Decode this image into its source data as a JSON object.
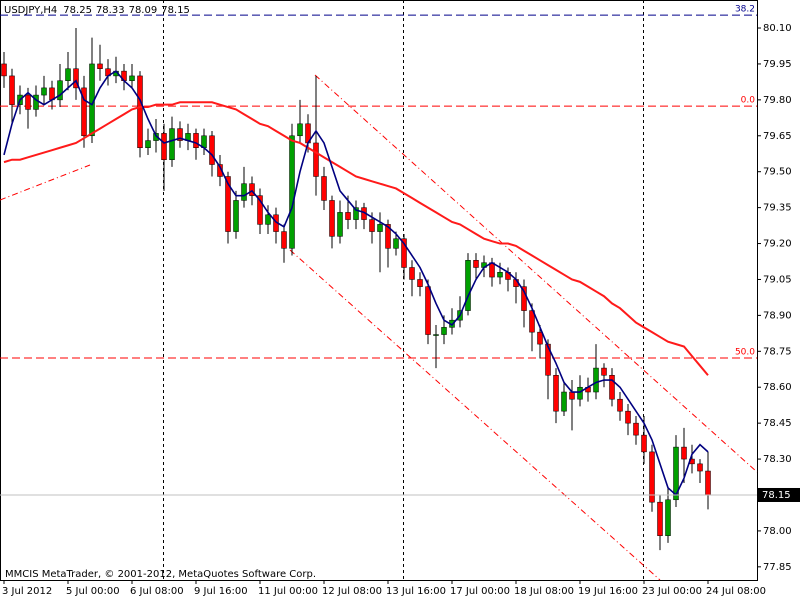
{
  "chart_data": {
    "type": "candlestick",
    "title": "USDJPY,H4",
    "footer": "MMCIS MetaTrader, © 2001-2012, MetaQuotes Software Corp.",
    "categories": [
      "3 Jul 2012",
      null,
      null,
      null,
      null,
      null,
      null,
      null,
      "5 Jul 00:00",
      null,
      null,
      null,
      null,
      null,
      null,
      null,
      "6 Jul 08:00",
      null,
      null,
      null,
      null,
      null,
      null,
      null,
      "9 Jul 16:00",
      null,
      null,
      null,
      null,
      null,
      null,
      null,
      "11 Jul 00:00",
      null,
      null,
      null,
      null,
      null,
      null,
      null,
      "12 Jul 08:00",
      null,
      null,
      null,
      null,
      null,
      null,
      null,
      "13 Jul 16:00",
      null,
      null,
      null,
      null,
      null,
      null,
      null,
      "17 Jul 00:00",
      null,
      null,
      null,
      null,
      null,
      null,
      null,
      "18 Jul 08:00",
      null,
      null,
      null,
      null,
      null,
      null,
      null,
      "19 Jul 16:00",
      null,
      null,
      null,
      null,
      null,
      null,
      null,
      "23 Jul 00:00",
      null,
      null,
      null,
      null,
      null,
      null,
      null,
      "24 Jul 08:00"
    ],
    "open": [
      79.95,
      79.9,
      79.78,
      79.82,
      79.76,
      79.82,
      79.85,
      79.8,
      79.88,
      79.93,
      79.85,
      79.65,
      79.95,
      79.93,
      79.9,
      79.92,
      79.88,
      79.9,
      79.6,
      79.63,
      79.66,
      79.55,
      79.68,
      79.63,
      79.66,
      79.6,
      79.65,
      79.53,
      79.48,
      79.25,
      79.38,
      79.45,
      79.4,
      79.28,
      79.32,
      79.25,
      79.18,
      79.65,
      79.7,
      79.62,
      79.48,
      79.38,
      79.23,
      79.33,
      79.3,
      79.35,
      79.3,
      79.25,
      79.28,
      79.18,
      79.22,
      79.1,
      79.05,
      79.02,
      78.82,
      78.82,
      78.85,
      78.88,
      78.92,
      79.13,
      79.1,
      79.12,
      79.06,
      79.08,
      79.05,
      79.02,
      78.92,
      78.83,
      78.78,
      78.65,
      78.5,
      78.58,
      78.55,
      78.6,
      78.58,
      78.68,
      78.65,
      78.55,
      78.5,
      78.45,
      78.4,
      78.33,
      78.12,
      77.98,
      78.13,
      78.35,
      78.3,
      78.28,
      78.25
    ],
    "high": [
      80.0,
      79.93,
      79.86,
      79.85,
      79.86,
      79.9,
      79.88,
      79.95,
      80.0,
      80.1,
      79.9,
      80.06,
      80.03,
      79.97,
      79.98,
      79.95,
      79.95,
      79.92,
      79.68,
      79.72,
      79.7,
      79.73,
      79.71,
      79.7,
      79.68,
      79.68,
      79.67,
      79.57,
      79.5,
      79.42,
      79.52,
      79.48,
      79.43,
      79.36,
      79.35,
      79.28,
      79.7,
      79.8,
      79.74,
      79.9,
      79.52,
      79.4,
      79.38,
      79.4,
      79.38,
      79.37,
      79.33,
      79.33,
      79.3,
      79.25,
      79.24,
      79.13,
      79.08,
      79.05,
      78.86,
      78.9,
      78.93,
      78.98,
      79.16,
      79.16,
      79.15,
      79.14,
      79.12,
      79.1,
      79.08,
      79.05,
      78.95,
      78.86,
      78.8,
      78.68,
      78.62,
      78.63,
      78.65,
      78.64,
      78.78,
      78.7,
      78.68,
      78.58,
      78.53,
      78.48,
      78.48,
      78.36,
      78.15,
      78.18,
      78.4,
      78.43,
      78.36,
      78.3,
      78.33
    ],
    "low": [
      79.85,
      79.7,
      79.74,
      79.68,
      79.73,
      79.78,
      79.76,
      79.77,
      79.84,
      79.8,
      79.6,
      79.62,
      79.88,
      79.86,
      79.87,
      79.84,
      79.85,
      79.56,
      79.57,
      79.58,
      79.42,
      79.52,
      79.6,
      79.59,
      79.55,
      79.57,
      79.48,
      79.44,
      79.2,
      79.22,
      79.35,
      79.36,
      79.24,
      79.24,
      79.2,
      79.12,
      79.15,
      79.62,
      79.58,
      79.4,
      79.34,
      79.18,
      79.2,
      79.26,
      79.26,
      79.26,
      79.2,
      79.08,
      79.1,
      79.15,
      79.05,
      78.98,
      78.98,
      78.78,
      78.68,
      78.78,
      78.82,
      78.85,
      78.9,
      79.05,
      79.06,
      79.02,
      79.03,
      79.0,
      78.95,
      78.85,
      78.75,
      78.72,
      78.55,
      78.45,
      78.48,
      78.42,
      78.52,
      78.54,
      78.55,
      78.6,
      78.52,
      78.46,
      78.4,
      78.36,
      78.28,
      78.08,
      77.92,
      77.95,
      78.1,
      78.2,
      78.24,
      78.2,
      78.09
    ],
    "close": [
      79.9,
      79.78,
      79.82,
      79.76,
      79.82,
      79.85,
      79.8,
      79.88,
      79.93,
      79.85,
      79.65,
      79.95,
      79.93,
      79.9,
      79.92,
      79.88,
      79.9,
      79.6,
      79.63,
      79.66,
      79.55,
      79.68,
      79.63,
      79.66,
      79.6,
      79.65,
      79.53,
      79.48,
      79.25,
      79.38,
      79.45,
      79.4,
      79.28,
      79.32,
      79.25,
      79.18,
      79.65,
      79.7,
      79.62,
      79.48,
      79.38,
      79.23,
      79.33,
      79.3,
      79.35,
      79.3,
      79.25,
      79.28,
      79.18,
      79.22,
      79.1,
      79.05,
      79.02,
      78.82,
      78.82,
      78.85,
      78.88,
      78.92,
      79.13,
      79.1,
      79.12,
      79.06,
      79.08,
      79.05,
      79.02,
      78.92,
      78.83,
      78.78,
      78.65,
      78.5,
      78.58,
      78.55,
      78.6,
      78.58,
      78.68,
      78.65,
      78.55,
      78.5,
      78.45,
      78.4,
      78.33,
      78.12,
      77.98,
      78.13,
      78.35,
      78.3,
      78.28,
      78.25,
      78.15
    ],
    "up_color": "#00a000",
    "down_color": "#ff0000",
    "lines": [
      {
        "color": "#ff1a1a",
        "values": [
          79.54,
          79.55,
          79.55,
          79.56,
          79.57,
          79.58,
          79.59,
          79.6,
          79.61,
          79.62,
          79.64,
          79.66,
          79.68,
          79.7,
          79.72,
          79.74,
          79.76,
          79.77,
          79.77,
          79.78,
          79.78,
          79.78,
          79.79,
          79.79,
          79.79,
          79.79,
          79.79,
          79.78,
          79.77,
          79.76,
          79.74,
          79.72,
          79.7,
          79.69,
          79.67,
          79.65,
          79.63,
          79.62,
          79.6,
          79.58,
          79.56,
          79.54,
          79.52,
          79.5,
          79.48,
          79.47,
          79.46,
          79.45,
          79.44,
          79.43,
          79.41,
          79.39,
          79.37,
          79.35,
          79.33,
          79.31,
          79.29,
          79.28,
          79.26,
          79.24,
          79.22,
          79.21,
          79.2,
          79.2,
          79.19,
          79.17,
          79.15,
          79.13,
          79.11,
          79.09,
          79.07,
          79.05,
          79.04,
          79.02,
          79.0,
          78.98,
          78.95,
          78.93,
          78.9,
          78.87,
          78.85,
          78.83,
          78.81,
          78.79,
          78.78,
          78.77,
          78.73,
          78.69,
          78.65
        ]
      },
      {
        "color": "#000080",
        "values": [
          79.57,
          79.7,
          79.8,
          79.83,
          79.8,
          79.78,
          79.8,
          79.82,
          79.85,
          79.88,
          79.8,
          79.78,
          79.85,
          79.9,
          79.92,
          79.88,
          79.85,
          79.8,
          79.72,
          79.65,
          79.62,
          79.63,
          79.64,
          79.63,
          79.62,
          79.6,
          79.57,
          79.52,
          79.45,
          79.4,
          79.4,
          79.42,
          79.38,
          79.33,
          79.29,
          79.27,
          79.35,
          79.5,
          79.62,
          79.67,
          79.62,
          79.52,
          79.42,
          79.38,
          79.34,
          79.33,
          79.31,
          79.29,
          79.27,
          79.24,
          79.2,
          79.15,
          79.1,
          79.03,
          78.95,
          78.88,
          78.86,
          78.9,
          78.98,
          79.05,
          79.1,
          79.12,
          79.1,
          79.08,
          79.05,
          79.0,
          78.93,
          78.85,
          78.77,
          78.7,
          78.62,
          78.58,
          78.58,
          78.6,
          78.62,
          78.63,
          78.63,
          78.6,
          78.55,
          78.5,
          78.45,
          78.38,
          78.28,
          78.18,
          78.15,
          78.22,
          78.32,
          78.36,
          78.33
        ]
      }
    ],
    "levels": [
      {
        "label": "38.2",
        "value": 80.154,
        "color": "#00008b"
      },
      {
        "label": "0.0",
        "value": 79.774,
        "color": "#ff0000"
      },
      {
        "label": "50.0",
        "value": 78.722,
        "color": "#ff0000"
      }
    ],
    "ylim": [
      77.795,
      80.217
    ],
    "yticks": [
      {
        "value": 80.1,
        "label": "80.10"
      },
      79.95,
      {
        "value": 79.8,
        "label": "79.80"
      },
      79.65,
      {
        "value": 79.5,
        "label": "79.50"
      },
      79.35,
      {
        "value": 79.2,
        "label": "79.20"
      },
      79.05,
      {
        "value": 78.9,
        "label": "78.90"
      },
      78.75,
      {
        "value": 78.6,
        "label": "78.60"
      },
      78.45,
      {
        "value": 78.3,
        "label": "78.30"
      },
      {
        "value": 78.0,
        "label": "78.00"
      },
      77.85
    ]
  }
}
